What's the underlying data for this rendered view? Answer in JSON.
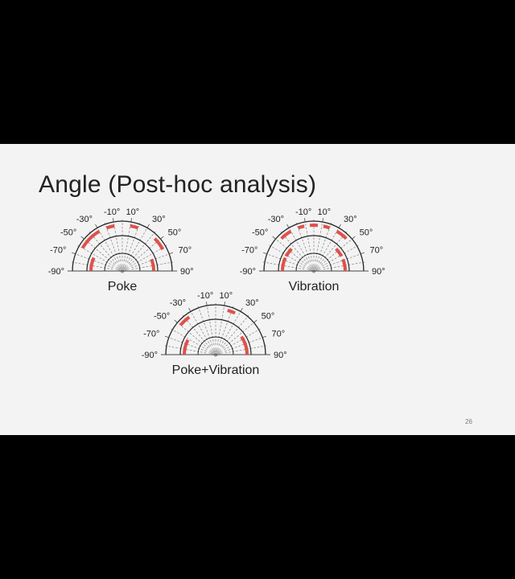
{
  "slide": {
    "title": "Angle (Post-hoc analysis)",
    "page_number": "26"
  },
  "diagrams": [
    {
      "caption": "Poke",
      "highlighted_segments": [
        {
          "ring": "outer",
          "from": -60,
          "to": -30
        },
        {
          "ring": "outer",
          "from": -20,
          "to": -10
        },
        {
          "ring": "outer",
          "from": 10,
          "to": 20
        },
        {
          "ring": "outer",
          "from": 45,
          "to": 62
        },
        {
          "ring": "inner",
          "from": -90,
          "to": -65
        },
        {
          "ring": "inner",
          "from": 68,
          "to": 90
        }
      ]
    },
    {
      "caption": "Vibration",
      "highlighted_segments": [
        {
          "ring": "outer",
          "from": -45,
          "to": -30
        },
        {
          "ring": "outer",
          "from": -20,
          "to": -12
        },
        {
          "ring": "outer",
          "from": -5,
          "to": 5
        },
        {
          "ring": "outer",
          "from": 12,
          "to": 20
        },
        {
          "ring": "outer",
          "from": 30,
          "to": 45
        },
        {
          "ring": "inner",
          "from": -90,
          "to": -65
        },
        {
          "ring": "inner",
          "from": -62,
          "to": -45
        },
        {
          "ring": "inner",
          "from": 45,
          "to": 62
        },
        {
          "ring": "inner",
          "from": 68,
          "to": 90
        }
      ]
    },
    {
      "caption": "Poke+Vibration",
      "highlighted_segments": [
        {
          "ring": "outer",
          "from": -50,
          "to": -35
        },
        {
          "ring": "outer",
          "from": 15,
          "to": 25
        },
        {
          "ring": "inner",
          "from": -90,
          "to": -62
        },
        {
          "ring": "inner",
          "from": 55,
          "to": 90
        }
      ]
    }
  ],
  "angle_labels": [
    "-90°",
    "-70°",
    "-50°",
    "-30°",
    "-10°",
    "10°",
    "30°",
    "50°",
    "70°",
    "90°"
  ],
  "colors": {
    "highlight": "#e0504a",
    "arc": "#222222",
    "dashed_spoke": "#8a8a8a",
    "background": "#f3f3f3",
    "frame": "#000000"
  }
}
